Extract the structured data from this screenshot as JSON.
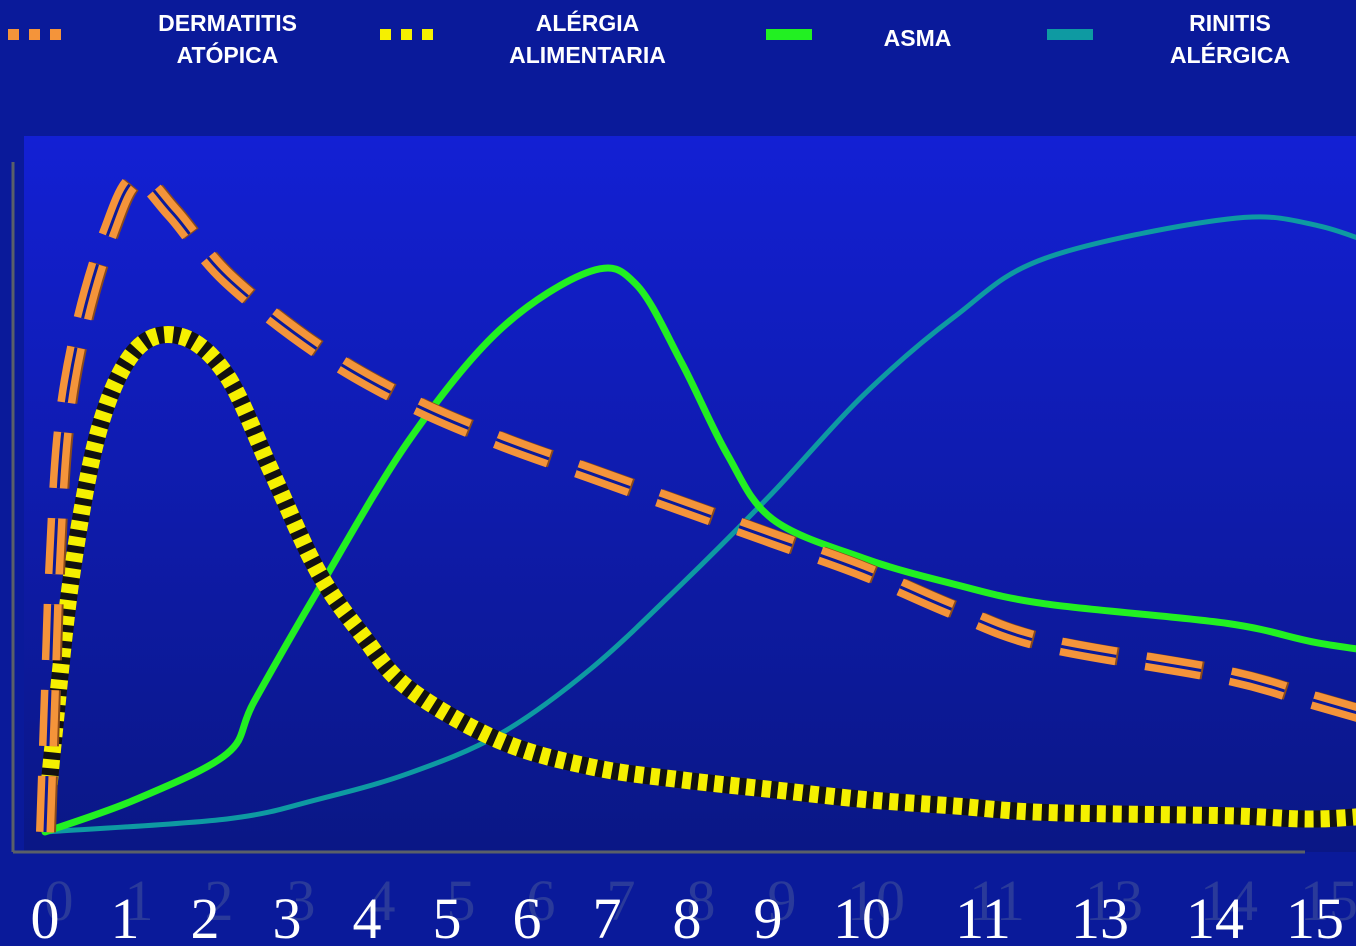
{
  "chart_data": {
    "type": "line",
    "x_ticks": [
      "0",
      "1",
      "2",
      "3",
      "4",
      "5",
      "6",
      "7",
      "8",
      "9",
      "10",
      "11",
      "13",
      "14",
      "15"
    ],
    "grid": false,
    "legend_placement": "top",
    "series": [
      {
        "name": "DERMATITIS\nATÓPICA",
        "style": "dashed",
        "color": "#f4943a",
        "points": [
          [
            0,
            0
          ],
          [
            0.05,
            20
          ],
          [
            0.1,
            40
          ],
          [
            0.2,
            62
          ],
          [
            0.4,
            78
          ],
          [
            0.7,
            92
          ],
          [
            1.0,
            100
          ],
          [
            1.4,
            95
          ],
          [
            2,
            85
          ],
          [
            3,
            74
          ],
          [
            4,
            66
          ],
          [
            5,
            60
          ],
          [
            6,
            55
          ],
          [
            7,
            50
          ],
          [
            8,
            45
          ],
          [
            9,
            40
          ],
          [
            10,
            34
          ],
          [
            11,
            29
          ],
          [
            13,
            24
          ],
          [
            14,
            20
          ],
          [
            15,
            16
          ]
        ]
      },
      {
        "name": "ALÉRGIA\nALIMENTARIA",
        "style": "dotted",
        "color": "#f5f000",
        "points": [
          [
            0,
            0
          ],
          [
            0.1,
            15
          ],
          [
            0.3,
            40
          ],
          [
            0.6,
            62
          ],
          [
            1.0,
            74
          ],
          [
            1.5,
            76
          ],
          [
            2,
            70
          ],
          [
            2.5,
            55
          ],
          [
            3,
            40
          ],
          [
            3.5,
            30
          ],
          [
            4,
            22
          ],
          [
            5,
            14
          ],
          [
            6,
            10
          ],
          [
            7,
            8
          ],
          [
            8,
            6.5
          ],
          [
            9,
            5
          ],
          [
            10,
            4
          ],
          [
            11,
            3
          ],
          [
            13,
            2.5
          ],
          [
            14,
            2
          ],
          [
            15,
            3
          ]
        ]
      },
      {
        "name": "ASMA",
        "style": "solid",
        "color": "#22f022",
        "points": [
          [
            0,
            0
          ],
          [
            1,
            5
          ],
          [
            2,
            12
          ],
          [
            2.3,
            20
          ],
          [
            3,
            37
          ],
          [
            4,
            60
          ],
          [
            5,
            77
          ],
          [
            6,
            86
          ],
          [
            6.5,
            84
          ],
          [
            7,
            72
          ],
          [
            7.5,
            58
          ],
          [
            8,
            48
          ],
          [
            9,
            42
          ],
          [
            10,
            38
          ],
          [
            11,
            35
          ],
          [
            13,
            32
          ],
          [
            14,
            29
          ],
          [
            15,
            27
          ]
        ]
      },
      {
        "name": "RINITIS\nALÉRGICA",
        "style": "solid",
        "color": "#0e9aa2",
        "points": [
          [
            0,
            0
          ],
          [
            2,
            2
          ],
          [
            3,
            5
          ],
          [
            4,
            9
          ],
          [
            5,
            15
          ],
          [
            6,
            25
          ],
          [
            7,
            38
          ],
          [
            8,
            52
          ],
          [
            9,
            67
          ],
          [
            10,
            79
          ],
          [
            11,
            88
          ],
          [
            13,
            94
          ],
          [
            14,
            93
          ],
          [
            15,
            88
          ]
        ]
      }
    ]
  }
}
